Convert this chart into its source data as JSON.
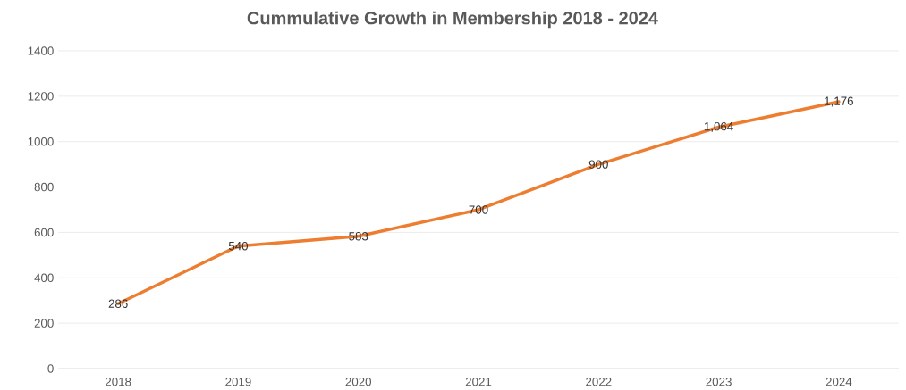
{
  "chart_data": {
    "type": "line",
    "title": "Cummulative Growth in Membership 2018 - 2024",
    "categories": [
      "2018",
      "2019",
      "2020",
      "2021",
      "2022",
      "2023",
      "2024"
    ],
    "values": [
      286,
      540,
      583,
      700,
      900,
      1064,
      1176
    ],
    "value_labels": [
      "286",
      "540",
      "583",
      "700",
      "900",
      "1,064",
      "1,176"
    ],
    "color": "#ed7d31",
    "marker": "none",
    "line_style": "solid",
    "ylim": [
      0,
      1400
    ],
    "yticks": [
      0,
      200,
      400,
      600,
      800,
      1000,
      1200,
      1400
    ],
    "grid": "y"
  }
}
